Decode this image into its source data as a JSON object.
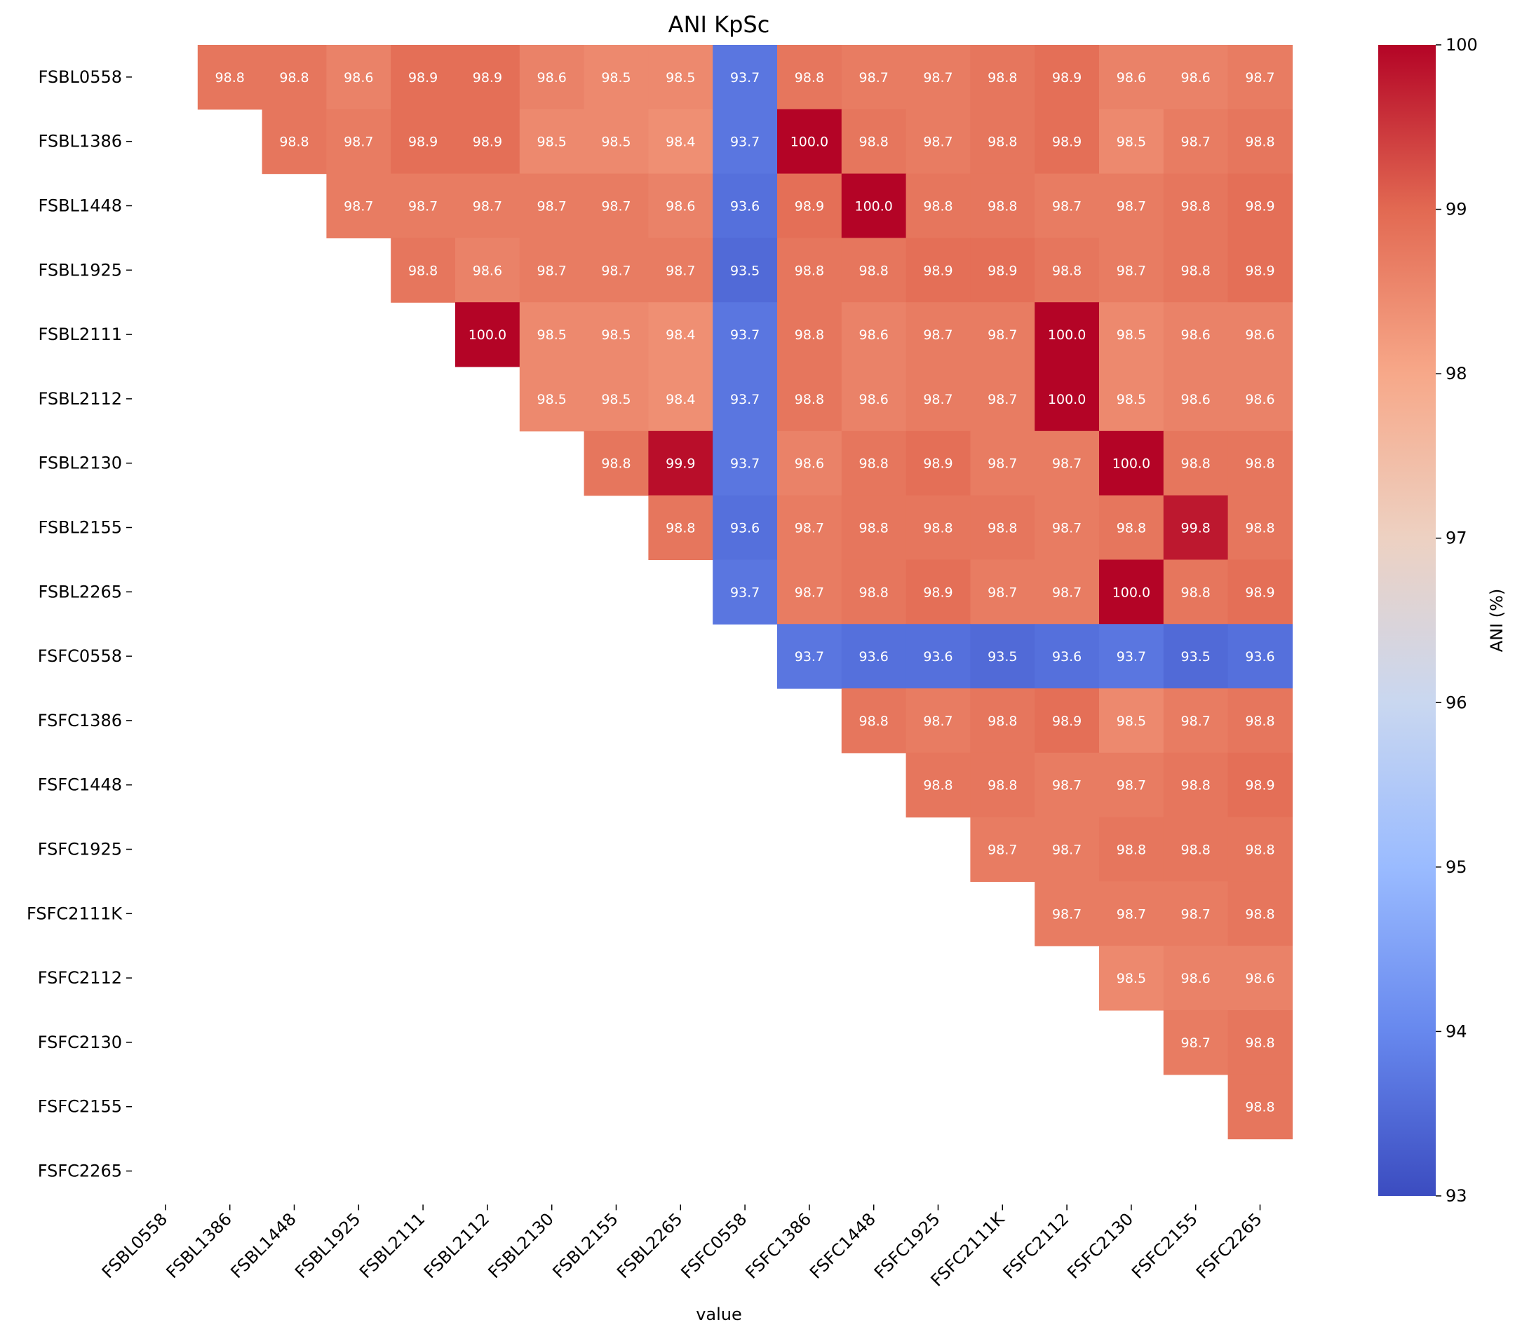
{
  "chart_data": {
    "type": "heatmap",
    "title": "ANI KpSc",
    "xlabel": "value",
    "ylabel": "",
    "colorbar_label": "ANI (%)",
    "colorbar_range": [
      93,
      100
    ],
    "colorbar_ticks": [
      "93",
      "94",
      "95",
      "96",
      "97",
      "98",
      "99",
      "100"
    ],
    "colormap": "coolwarm",
    "colormap_stops": [
      "#3b4cc0",
      "#6788ee",
      "#9abbff",
      "#c9d7f0",
      "#edd1c2",
      "#f7a889",
      "#e26952",
      "#b40426"
    ],
    "grid": false,
    "x_labels": [
      "FSBL0558",
      "FSBL1386",
      "FSBL1448",
      "FSBL1925",
      "FSBL2111",
      "FSBL2112",
      "FSBL2130",
      "FSBL2155",
      "FSBL2265",
      "FSFC0558",
      "FSFC1386",
      "FSFC1448",
      "FSFC1925",
      "FSFC2111K",
      "FSFC2112",
      "FSFC2130",
      "FSFC2155",
      "FSFC2265"
    ],
    "y_labels": [
      "FSBL0558",
      "FSBL1386",
      "FSBL1448",
      "FSBL1925",
      "FSBL2111",
      "FSBL2112",
      "FSBL2130",
      "FSBL2155",
      "FSBL2265",
      "FSFC0558",
      "FSFC1386",
      "FSFC1448",
      "FSFC1925",
      "FSFC2111K",
      "FSFC2112",
      "FSFC2130",
      "FSFC2155",
      "FSFC2265"
    ],
    "values": [
      [
        null,
        98.8,
        98.8,
        98.6,
        98.9,
        98.9,
        98.6,
        98.5,
        98.5,
        93.7,
        98.8,
        98.7,
        98.7,
        98.8,
        98.9,
        98.6,
        98.6,
        98.7
      ],
      [
        null,
        null,
        98.8,
        98.7,
        98.9,
        98.9,
        98.5,
        98.5,
        98.4,
        93.7,
        100.0,
        98.8,
        98.7,
        98.8,
        98.9,
        98.5,
        98.7,
        98.8
      ],
      [
        null,
        null,
        null,
        98.7,
        98.7,
        98.7,
        98.7,
        98.7,
        98.6,
        93.6,
        98.9,
        100.0,
        98.8,
        98.8,
        98.7,
        98.7,
        98.8,
        98.9
      ],
      [
        null,
        null,
        null,
        null,
        98.8,
        98.6,
        98.7,
        98.7,
        98.7,
        93.5,
        98.8,
        98.8,
        98.9,
        98.9,
        98.8,
        98.7,
        98.8,
        98.9
      ],
      [
        null,
        null,
        null,
        null,
        null,
        100.0,
        98.5,
        98.5,
        98.4,
        93.7,
        98.8,
        98.6,
        98.7,
        98.7,
        100.0,
        98.5,
        98.6,
        98.6
      ],
      [
        null,
        null,
        null,
        null,
        null,
        null,
        98.5,
        98.5,
        98.4,
        93.7,
        98.8,
        98.6,
        98.7,
        98.7,
        100.0,
        98.5,
        98.6,
        98.6
      ],
      [
        null,
        null,
        null,
        null,
        null,
        null,
        null,
        98.8,
        99.9,
        93.7,
        98.6,
        98.8,
        98.9,
        98.7,
        98.7,
        100.0,
        98.8,
        98.8
      ],
      [
        null,
        null,
        null,
        null,
        null,
        null,
        null,
        null,
        98.8,
        93.6,
        98.7,
        98.8,
        98.8,
        98.8,
        98.7,
        98.8,
        99.8,
        98.8
      ],
      [
        null,
        null,
        null,
        null,
        null,
        null,
        null,
        null,
        null,
        93.7,
        98.7,
        98.8,
        98.9,
        98.7,
        98.7,
        100.0,
        98.8,
        98.9
      ],
      [
        null,
        null,
        null,
        null,
        null,
        null,
        null,
        null,
        null,
        null,
        93.7,
        93.6,
        93.6,
        93.5,
        93.6,
        93.7,
        93.5,
        93.6
      ],
      [
        null,
        null,
        null,
        null,
        null,
        null,
        null,
        null,
        null,
        null,
        null,
        98.8,
        98.7,
        98.8,
        98.9,
        98.5,
        98.7,
        98.8
      ],
      [
        null,
        null,
        null,
        null,
        null,
        null,
        null,
        null,
        null,
        null,
        null,
        null,
        98.8,
        98.8,
        98.7,
        98.7,
        98.8,
        98.9
      ],
      [
        null,
        null,
        null,
        null,
        null,
        null,
        null,
        null,
        null,
        null,
        null,
        null,
        null,
        98.7,
        98.7,
        98.8,
        98.8,
        98.8
      ],
      [
        null,
        null,
        null,
        null,
        null,
        null,
        null,
        null,
        null,
        null,
        null,
        null,
        null,
        null,
        98.7,
        98.7,
        98.7,
        98.8
      ],
      [
        null,
        null,
        null,
        null,
        null,
        null,
        null,
        null,
        null,
        null,
        null,
        null,
        null,
        null,
        null,
        98.5,
        98.6,
        98.6
      ],
      [
        null,
        null,
        null,
        null,
        null,
        null,
        null,
        null,
        null,
        null,
        null,
        null,
        null,
        null,
        null,
        null,
        98.7,
        98.8
      ],
      [
        null,
        null,
        null,
        null,
        null,
        null,
        null,
        null,
        null,
        null,
        null,
        null,
        null,
        null,
        null,
        null,
        null,
        98.8
      ],
      [
        null,
        null,
        null,
        null,
        null,
        null,
        null,
        null,
        null,
        null,
        null,
        null,
        null,
        null,
        null,
        null,
        null,
        null
      ]
    ]
  }
}
